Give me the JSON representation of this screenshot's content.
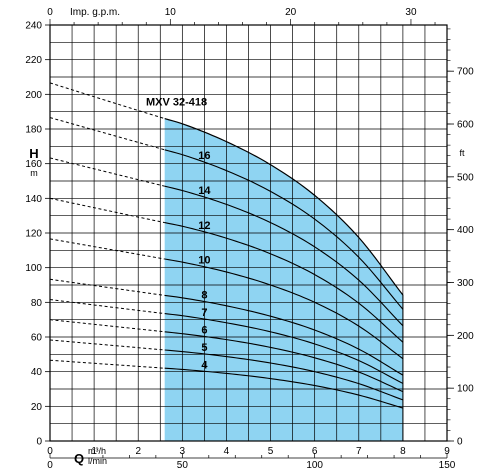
{
  "chart_data": {
    "type": "line",
    "title": "MXV 32-418",
    "y_axis_left": {
      "letter": "H",
      "unit": "m",
      "range": [
        0,
        240
      ],
      "ticks": [
        0,
        20,
        40,
        60,
        80,
        100,
        120,
        140,
        160,
        180,
        200,
        220,
        240
      ]
    },
    "y_axis_right": {
      "unit": "ft",
      "ticks": [
        0,
        100,
        200,
        300,
        400,
        500,
        600,
        700
      ]
    },
    "x_axis_bottom_m3h": {
      "letter": "Q",
      "unit": "m³/h",
      "range": [
        0,
        9
      ],
      "ticks": [
        0,
        1,
        2,
        3,
        4,
        5,
        6,
        7,
        8,
        9
      ]
    },
    "x_axis_bottom_lmin": {
      "unit": "l/min",
      "ticks": [
        0,
        50,
        100,
        150
      ]
    },
    "x_axis_top_gpm": {
      "label": "Imp. g.p.m.",
      "ticks": [
        0,
        10,
        20,
        30
      ]
    },
    "operating_range_m3h": [
      2.6,
      8
    ],
    "series": [
      {
        "name": "4",
        "points": [
          [
            0,
            46.6
          ],
          [
            2.6,
            42
          ],
          [
            3,
            41.3
          ],
          [
            4,
            39
          ],
          [
            5,
            36
          ],
          [
            6,
            32
          ],
          [
            7,
            26.5
          ],
          [
            8,
            19
          ]
        ]
      },
      {
        "name": "5",
        "points": [
          [
            0,
            58.3
          ],
          [
            2.6,
            52.5
          ],
          [
            3,
            51.6
          ],
          [
            4,
            48.7
          ],
          [
            5,
            45
          ],
          [
            6,
            40
          ],
          [
            7,
            33.1
          ],
          [
            8,
            23.7
          ]
        ]
      },
      {
        "name": "6",
        "points": [
          [
            0,
            70
          ],
          [
            2.6,
            63
          ],
          [
            3,
            61.9
          ],
          [
            4,
            58.5
          ],
          [
            5,
            54
          ],
          [
            6,
            48
          ],
          [
            7,
            39.8
          ],
          [
            8,
            28.5
          ]
        ]
      },
      {
        "name": "7",
        "points": [
          [
            0,
            81.6
          ],
          [
            2.6,
            73.5
          ],
          [
            3,
            72.3
          ],
          [
            4,
            68.2
          ],
          [
            5,
            63
          ],
          [
            6,
            56
          ],
          [
            7,
            46.4
          ],
          [
            8,
            33.2
          ]
        ]
      },
      {
        "name": "8",
        "points": [
          [
            0,
            93.3
          ],
          [
            2.6,
            84
          ],
          [
            3,
            82.6
          ],
          [
            4,
            78
          ],
          [
            5,
            72
          ],
          [
            6,
            64
          ],
          [
            7,
            53
          ],
          [
            8,
            38
          ]
        ]
      },
      {
        "name": "10",
        "points": [
          [
            0,
            116.6
          ],
          [
            2.6,
            105
          ],
          [
            3,
            103.2
          ],
          [
            4,
            97.5
          ],
          [
            5,
            90
          ],
          [
            6,
            80
          ],
          [
            7,
            66.3
          ],
          [
            8,
            47.5
          ]
        ]
      },
      {
        "name": "12",
        "points": [
          [
            0,
            140
          ],
          [
            2.6,
            126
          ],
          [
            3,
            123.9
          ],
          [
            4,
            117
          ],
          [
            5,
            108
          ],
          [
            6,
            96
          ],
          [
            7,
            79.5
          ],
          [
            8,
            57
          ]
        ]
      },
      {
        "name": "14",
        "points": [
          [
            0,
            163.3
          ],
          [
            2.6,
            147
          ],
          [
            3,
            144.5
          ],
          [
            4,
            136.5
          ],
          [
            5,
            126
          ],
          [
            6,
            112
          ],
          [
            7,
            92.8
          ],
          [
            8,
            66.5
          ]
        ]
      },
      {
        "name": "16",
        "points": [
          [
            0,
            186.6
          ],
          [
            2.6,
            168
          ],
          [
            3,
            165.2
          ],
          [
            4,
            156
          ],
          [
            5,
            144
          ],
          [
            6,
            128
          ],
          [
            7,
            106
          ],
          [
            8,
            76
          ]
        ]
      },
      {
        "name": "",
        "points": [
          [
            0,
            206.6
          ],
          [
            2.6,
            186
          ],
          [
            3,
            183
          ],
          [
            4,
            172.7
          ],
          [
            5,
            159.4
          ],
          [
            6,
            141.7
          ],
          [
            7,
            117.4
          ],
          [
            8,
            84.2
          ]
        ]
      }
    ]
  },
  "colors": {
    "operating_area": "#8fd4f2",
    "curve": "#000000",
    "grid": "#000000"
  }
}
